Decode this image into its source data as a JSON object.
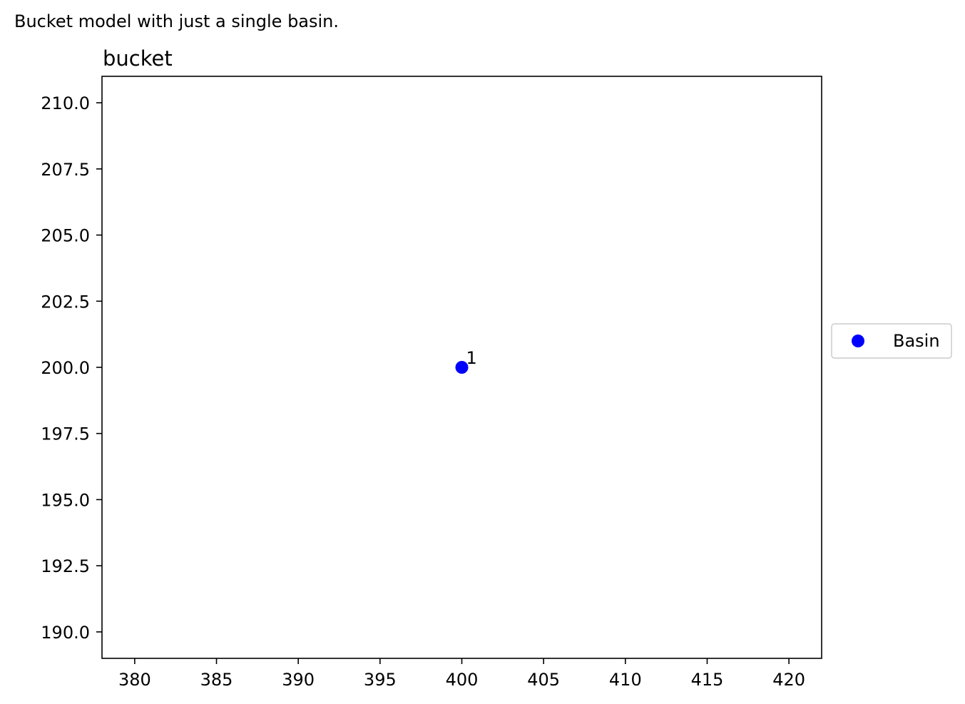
{
  "caption": "Bucket model with just a single basin.",
  "chart_data": {
    "type": "scatter",
    "title": "bucket",
    "xlabel": "",
    "ylabel": "",
    "xlim": [
      378,
      422
    ],
    "ylim": [
      189,
      211
    ],
    "grid": false,
    "x_ticks": [
      380,
      385,
      390,
      395,
      400,
      405,
      410,
      415,
      420
    ],
    "y_ticks": [
      190.0,
      192.5,
      195.0,
      197.5,
      200.0,
      202.5,
      205.0,
      207.5,
      210.0
    ],
    "y_tick_labels": [
      "190.0",
      "192.5",
      "195.0",
      "197.5",
      "200.0",
      "202.5",
      "205.0",
      "207.5",
      "210.0"
    ],
    "legend_position": "center-left outside right",
    "series": [
      {
        "name": "Basin",
        "color": "#0000ff",
        "points": [
          {
            "x": 400,
            "y": 200,
            "label": "1"
          }
        ]
      }
    ]
  }
}
